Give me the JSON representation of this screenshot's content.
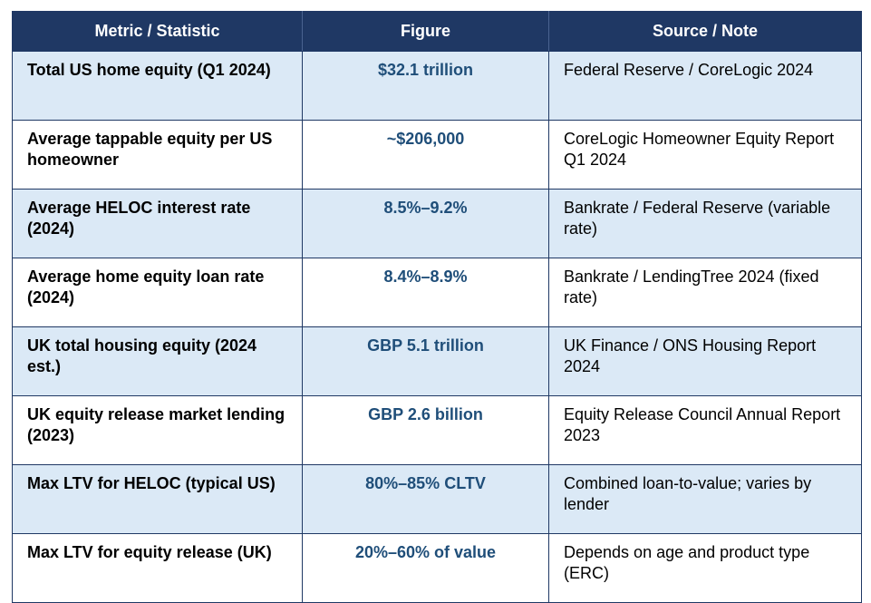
{
  "table": {
    "headers": [
      "Metric / Statistic",
      "Figure",
      "Source / Note"
    ],
    "rows": [
      {
        "metric": "Total US home equity (Q1 2024)",
        "figure": "$32.1 trillion",
        "source": "Federal Reserve / CoreLogic 2024"
      },
      {
        "metric": "Average tappable equity per US homeowner",
        "figure": "~$206,000",
        "source": "CoreLogic Homeowner Equity Report Q1 2024"
      },
      {
        "metric": "Average HELOC interest rate (2024)",
        "figure": "8.5%–9.2%",
        "source": "Bankrate / Federal Reserve (variable rate)"
      },
      {
        "metric": "Average home equity loan rate (2024)",
        "figure": "8.4%–8.9%",
        "source": "Bankrate / LendingTree 2024 (fixed rate)"
      },
      {
        "metric": "UK total housing equity (2024 est.)",
        "figure": "GBP 5.1 trillion",
        "source": "UK Finance / ONS Housing Report 2024"
      },
      {
        "metric": "UK equity release market lending (2023)",
        "figure": "GBP 2.6 billion",
        "source": "Equity Release Council Annual Report 2023"
      },
      {
        "metric": "Max LTV for HELOC (typical US)",
        "figure": "80%–85% CLTV",
        "source": "Combined loan-to-value; varies by lender"
      },
      {
        "metric": "Max LTV for equity release (UK)",
        "figure": "20%–60% of value",
        "source": "Depends on age and product type (ERC)"
      }
    ]
  },
  "colors": {
    "header_bg": "#1f3864",
    "row_alt_bg": "#dbe9f6",
    "figure_text": "#1f4e79"
  }
}
